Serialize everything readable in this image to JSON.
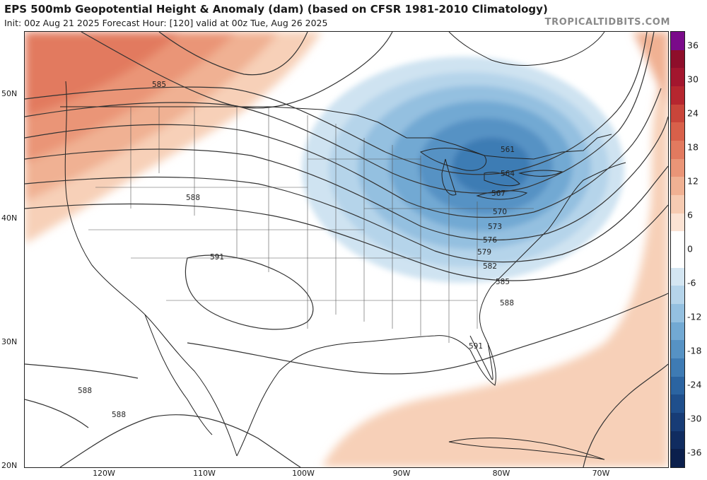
{
  "header": {
    "title": "EPS 500mb Geopotential Height & Anomaly (dam) (based on CFSR 1981-2010 Climatology)",
    "subtitle": "Init: 00z Aug 21 2025   Forecast Hour: [120]   valid at 00z Tue, Aug 26 2025",
    "brand": "TROPICALTIDBITS.COM"
  },
  "map": {
    "lat_labels": [
      "50N",
      "40N",
      "30N",
      "20N"
    ],
    "lon_labels": [
      "120W",
      "110W",
      "100W",
      "90W",
      "80W",
      "70W"
    ],
    "contour_labels": [
      "585",
      "588",
      "591",
      "591",
      "588",
      "588",
      "561",
      "564",
      "567",
      "570",
      "573",
      "576",
      "579",
      "582",
      "585",
      "588",
      "591"
    ],
    "feature": "Upper-level trough centered over the Great Lakes; ridge over the western US"
  },
  "colorbar": {
    "labels": [
      "36",
      "30",
      "24",
      "18",
      "12",
      "6",
      "0",
      "-6",
      "-12",
      "-18",
      "-24",
      "-30",
      "-36"
    ],
    "colors": [
      "#7a0a8a",
      "#8e0e2a",
      "#a3162e",
      "#b6262f",
      "#c9453a",
      "#d8604a",
      "#e27a5f",
      "#ea9577",
      "#f0b193",
      "#f6cbb2",
      "#fbe3d4",
      "#ffffff",
      "#ffffff",
      "#d4e6f2",
      "#b5d4ea",
      "#94c0e0",
      "#72a9d3",
      "#5692c4",
      "#3e7bb4",
      "#2b64a1",
      "#1f4f8c",
      "#173c76",
      "#102c60",
      "#0b1f4c"
    ]
  }
}
